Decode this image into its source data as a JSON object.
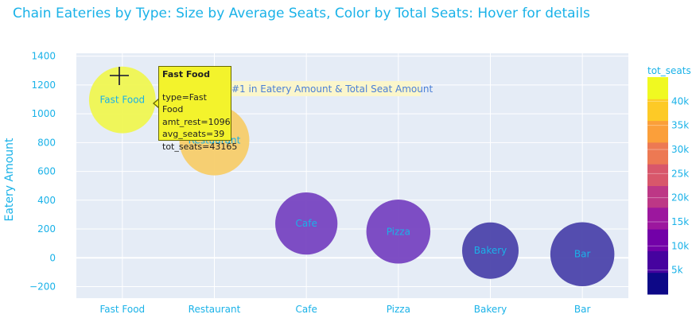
{
  "chart_data": {
    "type": "scatter",
    "title": "Chain Eateries by Type: Size by Average Seats, Color by Total Seats: Hover for details",
    "xlabel": "",
    "ylabel": "Eatery Amount",
    "categories": [
      "Fast Food",
      "Restaurant",
      "Cafe",
      "Pizza",
      "Bakery",
      "Bar"
    ],
    "ylim": [
      -280,
      1420
    ],
    "yticks": [
      -200,
      0,
      200,
      400,
      600,
      800,
      1000,
      1200,
      1400
    ],
    "grid": true,
    "points": [
      {
        "type": "Fast Food",
        "amt_rest": 1096,
        "avg_seats": 39,
        "tot_seats": 43165,
        "color": "#eff751",
        "label": "Fast Food"
      },
      {
        "type": "Restaurant",
        "amt_rest": 815,
        "avg_seats": 43,
        "tot_seats": 35000,
        "color": "#f7ce6a",
        "label": "Restaurant"
      },
      {
        "type": "Cafe",
        "amt_rest": 238,
        "avg_seats": 34,
        "tot_seats": 8100,
        "color": "#7744c1",
        "label": "Cafe"
      },
      {
        "type": "Pizza",
        "amt_rest": 182,
        "avg_seats": 36,
        "tot_seats": 6600,
        "color": "#7744c1",
        "label": "Pizza"
      },
      {
        "type": "Bakery",
        "amt_rest": 50,
        "avg_seats": 28,
        "tot_seats": 1400,
        "color": "#4c44ab",
        "label": "Bakery"
      },
      {
        "type": "Bar",
        "amt_rest": 25,
        "avg_seats": 36,
        "tot_seats": 900,
        "color": "#4c44ab",
        "label": "Bar"
      }
    ],
    "annotation": {
      "text": "#1 in Eatery Amount & Total Seat Amount",
      "x": "Restaurant",
      "y": 1195
    },
    "colorbar": {
      "title": "tot_seats",
      "range": [
        0,
        45000
      ],
      "ticks": [
        5000,
        10000,
        15000,
        20000,
        25000,
        30000,
        35000,
        40000
      ],
      "tick_labels": [
        "5k",
        "10k",
        "15k",
        "20k",
        "25k",
        "30k",
        "35k",
        "40k"
      ],
      "colors": [
        "#0d0887",
        "#46039f",
        "#7201a8",
        "#9c179e",
        "#bd3786",
        "#d8576b",
        "#ed7953",
        "#fb9f3a",
        "#fdca26",
        "#f0f921"
      ]
    },
    "hover": {
      "title": "Fast Food",
      "lines": [
        "type=Fast Food",
        "amt_rest=1096",
        "avg_seats=39",
        "tot_seats=43165"
      ]
    }
  }
}
